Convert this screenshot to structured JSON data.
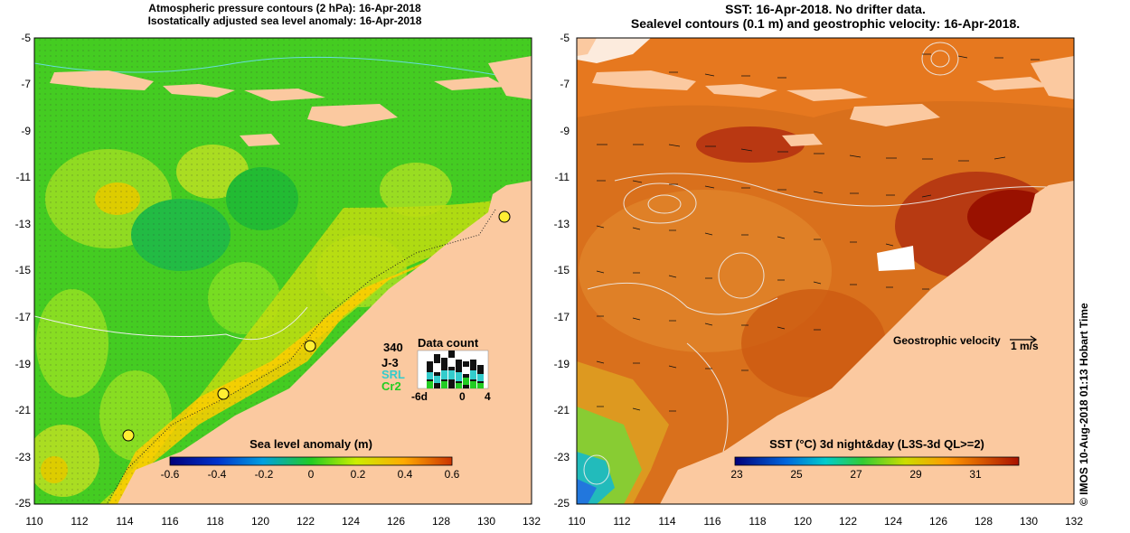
{
  "left_panel": {
    "title_line1": "Atmospheric pressure contours (2 hPa): 16-Apr-2018",
    "title_line2": "Isostatically adjusted sea level anomaly: 16-Apr-2018",
    "y_ticks": [
      "-5",
      "-7",
      "-9",
      "-11",
      "-13",
      "-15",
      "-17",
      "-19",
      "-21",
      "-23",
      "-25"
    ],
    "x_ticks": [
      "110",
      "112",
      "114",
      "116",
      "118",
      "120",
      "122",
      "124",
      "126",
      "128",
      "130",
      "132"
    ],
    "colorbar": {
      "title": "Sea level anomaly (m)",
      "ticks": [
        "-0.6",
        "-0.4",
        "-0.2",
        "0",
        "0.2",
        "0.4",
        "0.6"
      ],
      "range": [
        -0.6,
        0.6
      ]
    },
    "data_count": {
      "title": "Data count",
      "total": "340",
      "missions": [
        {
          "label": "J-3",
          "color": "#000000"
        },
        {
          "label": "SRL",
          "color": "#33cccc"
        },
        {
          "label": "Cr2",
          "color": "#22cc22"
        }
      ],
      "x_labels": [
        "-6d",
        "0",
        "4"
      ]
    }
  },
  "right_panel": {
    "title_line1": "SST: 16-Apr-2018. No drifter data.",
    "title_line2": "Sealevel contours (0.1 m) and geostrophic velocity: 16-Apr-2018.",
    "y_ticks": [
      "-5",
      "-7",
      "-9",
      "-11",
      "-13",
      "-15",
      "-17",
      "-19",
      "-21",
      "-23",
      "-25"
    ],
    "x_ticks": [
      "110",
      "112",
      "114",
      "116",
      "118",
      "120",
      "122",
      "124",
      "126",
      "128",
      "130",
      "132"
    ],
    "colorbar": {
      "title": "SST (°C) 3d night&day (L3S-3d QL>=2)",
      "ticks": [
        "23",
        "25",
        "27",
        "29",
        "31"
      ],
      "range": [
        23,
        32.5
      ]
    },
    "velocity_legend": {
      "label": "Geostrophic velocity",
      "unit": "1 m/s"
    }
  },
  "stamp": "© IMOS 10-Aug-2018 01:13 Hobart Time",
  "colors": {
    "land": "#fbc9a0",
    "sla_base": "#33cc22",
    "sst_base": "#d9701c"
  }
}
